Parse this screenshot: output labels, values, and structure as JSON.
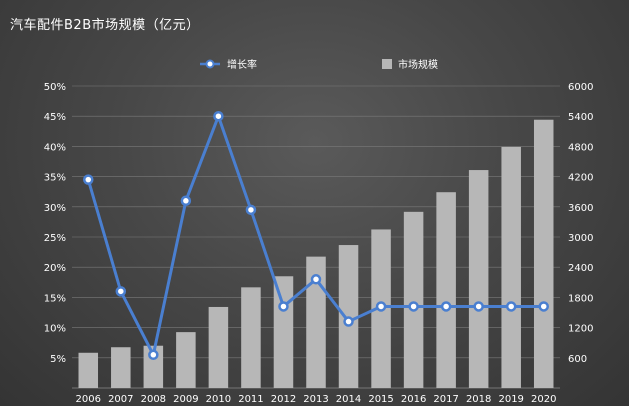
{
  "chart_data": {
    "type": "bar+line",
    "title": "汽车配件B2B市场规模（亿元）",
    "categories": [
      "2006",
      "2007",
      "2008",
      "2009",
      "2010",
      "2011",
      "2012",
      "2013",
      "2014",
      "2015",
      "2016",
      "2017",
      "2018",
      "2019",
      "2020"
    ],
    "series": [
      {
        "name": "增长率",
        "kind": "line",
        "axis": "left",
        "color": "#4a7fd0",
        "values": [
          34.5,
          16,
          5.5,
          31,
          45,
          29.5,
          13.5,
          18,
          11,
          13.5,
          13.5,
          13.5,
          13.5,
          13.5,
          13.5
        ]
      },
      {
        "name": "市场规模",
        "kind": "bar",
        "axis": "right",
        "color": "#b7b7b7",
        "values": [
          700,
          810,
          840,
          1110,
          1610,
          2000,
          2220,
          2610,
          2840,
          3150,
          3500,
          3890,
          4330,
          4790,
          5330
        ]
      }
    ],
    "y_left": {
      "min": 0,
      "max": 50,
      "ticks": [
        "5%",
        "10%",
        "15%",
        "20%",
        "25%",
        "30%",
        "35%",
        "40%",
        "45%",
        "50%"
      ],
      "tick_values": [
        5,
        10,
        15,
        20,
        25,
        30,
        35,
        40,
        45,
        50
      ]
    },
    "y_right": {
      "min": 0,
      "max": 6000,
      "ticks": [
        "600",
        "1200",
        "1800",
        "2400",
        "3000",
        "3600",
        "4200",
        "4800",
        "5400",
        "6000"
      ],
      "tick_values": [
        600,
        1200,
        1800,
        2400,
        3000,
        3600,
        4200,
        4800,
        5400,
        6000
      ]
    },
    "grid": true,
    "legend": "top-center"
  }
}
